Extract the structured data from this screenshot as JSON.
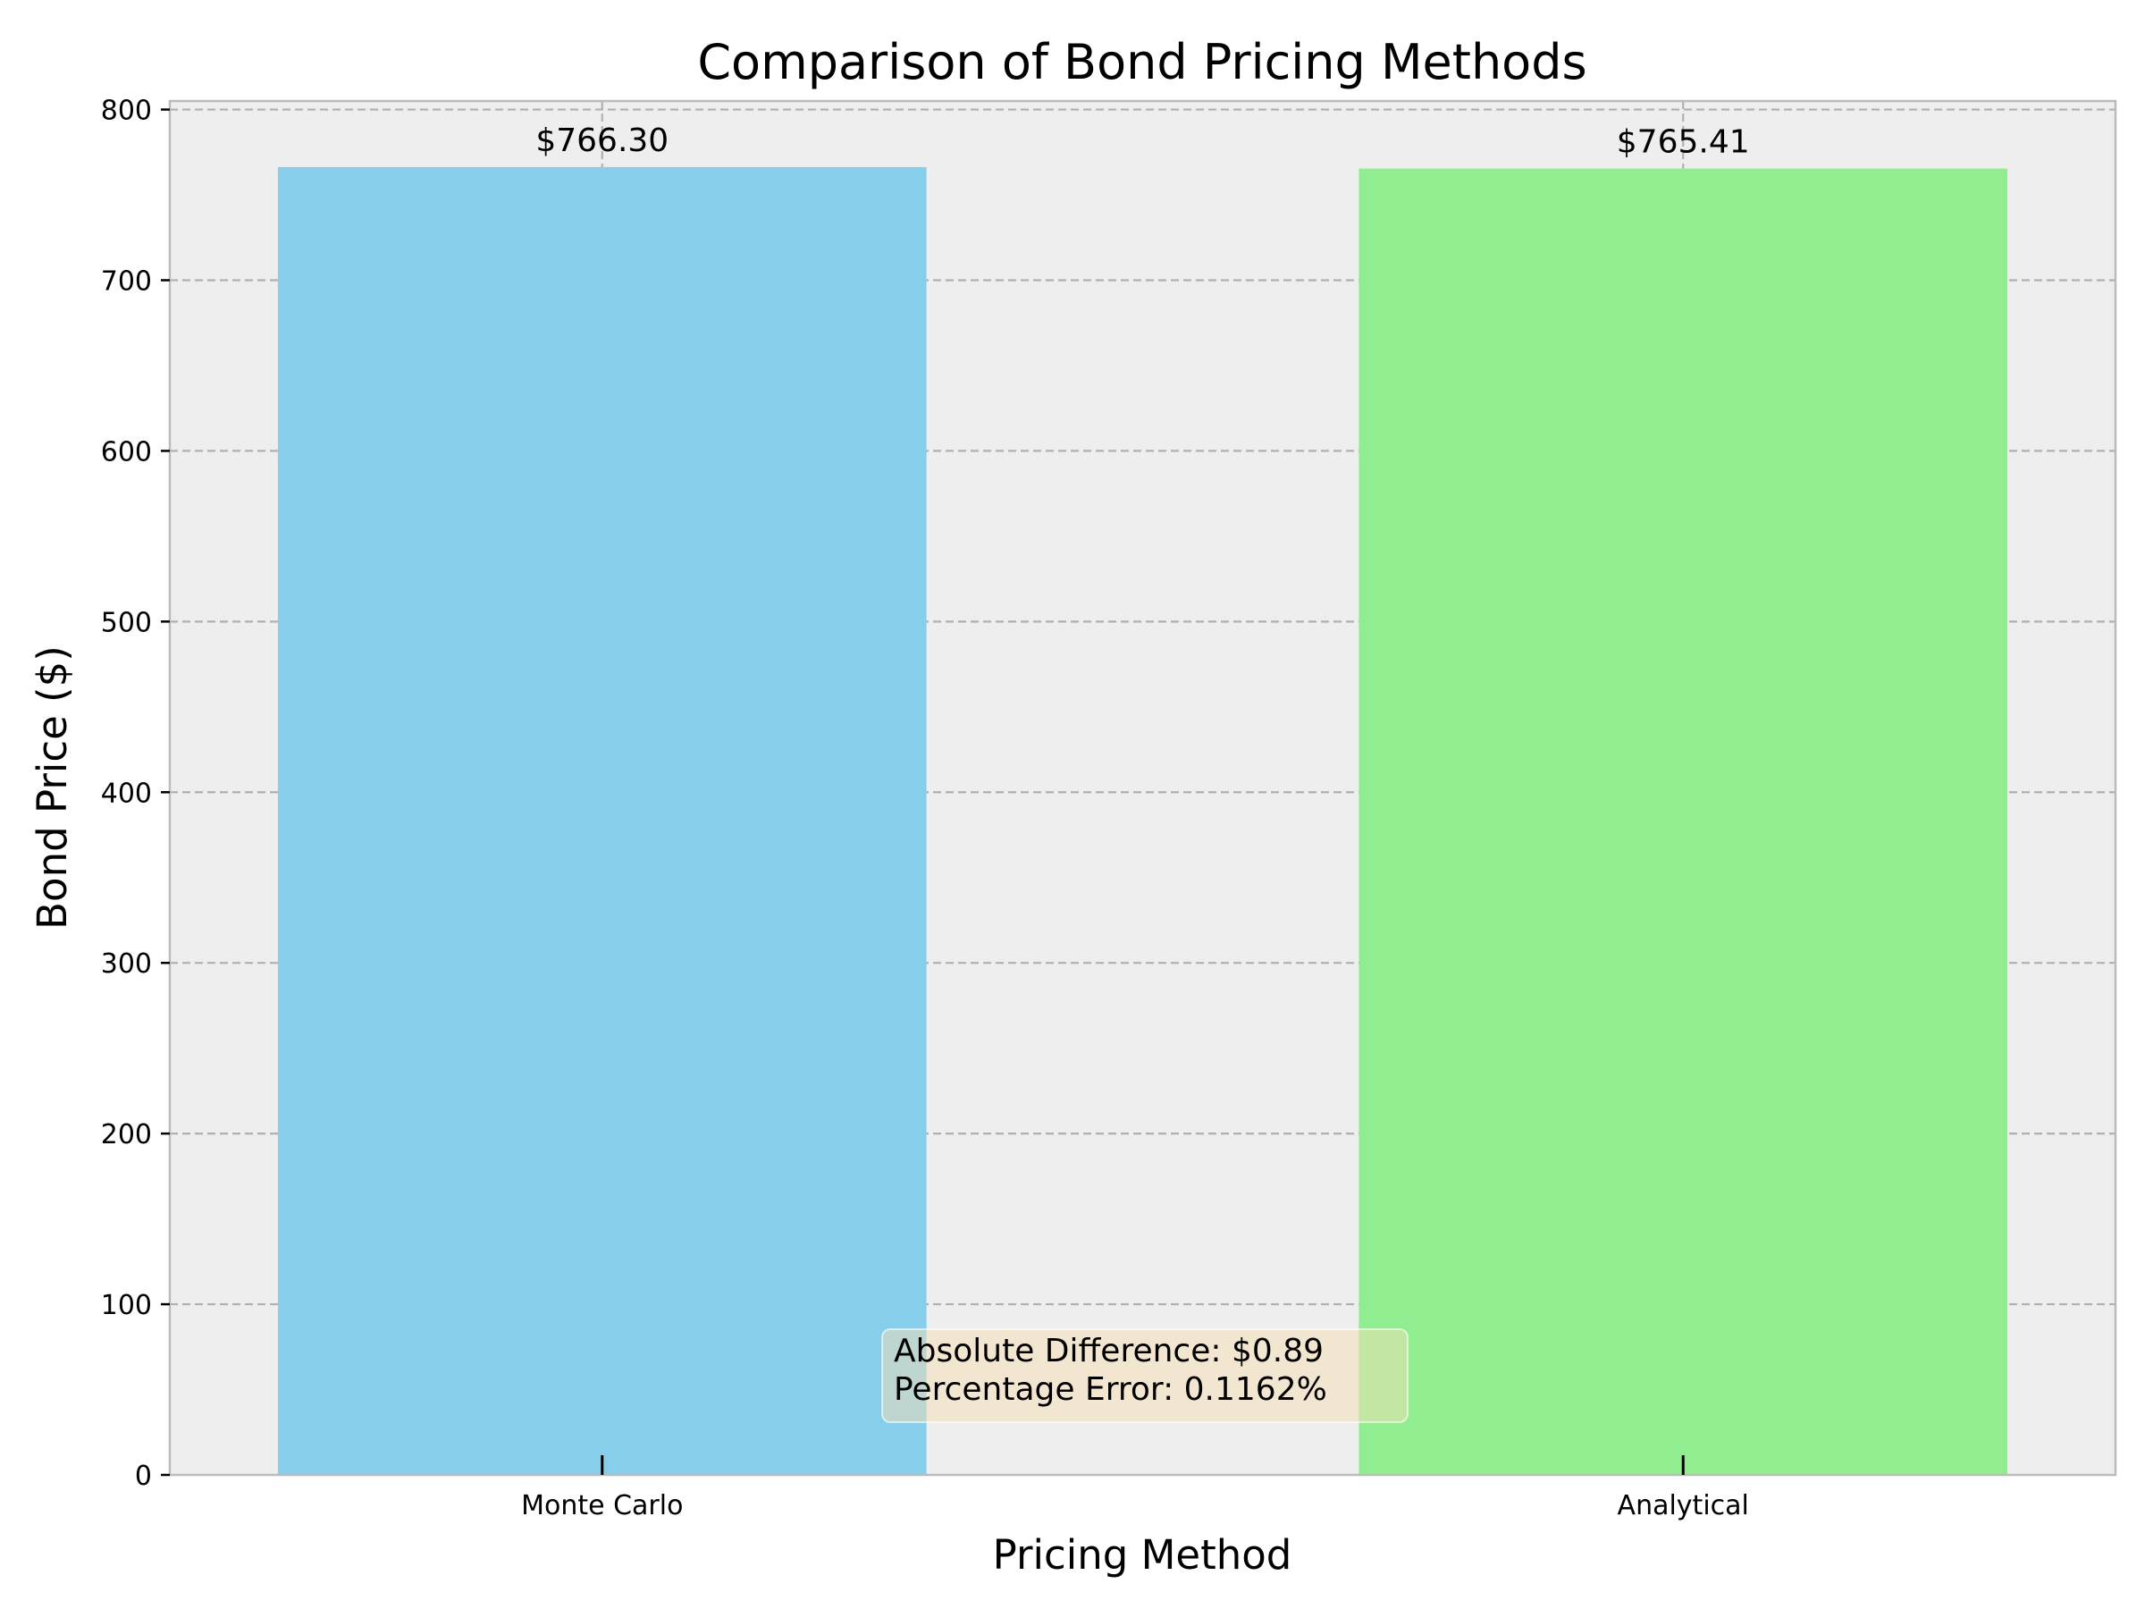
{
  "chart_data": {
    "type": "bar",
    "title": "Comparison of Bond Pricing Methods",
    "xlabel": "Pricing Method",
    "ylabel": "Bond Price ($)",
    "categories": [
      "Monte Carlo",
      "Analytical"
    ],
    "values": [
      766.3,
      765.41
    ],
    "bar_labels": [
      "$766.30",
      "$765.41"
    ],
    "bar_colors": [
      "#87CEEB",
      "#90EE90"
    ],
    "ylim": [
      0,
      805
    ],
    "yticks": [
      0,
      100,
      200,
      300,
      400,
      500,
      600,
      700,
      800
    ],
    "ytick_labels": [
      "0",
      "100",
      "200",
      "300",
      "400",
      "500",
      "600",
      "700",
      "800"
    ],
    "grid": true,
    "grid_style": "dashed",
    "background_color": "#EEEEEE",
    "annotation": {
      "lines": [
        "Absolute Difference: $0.89",
        "Percentage Error: 0.1162%"
      ],
      "box_color": "#F5DEB3",
      "placement": "bottom-center"
    }
  }
}
